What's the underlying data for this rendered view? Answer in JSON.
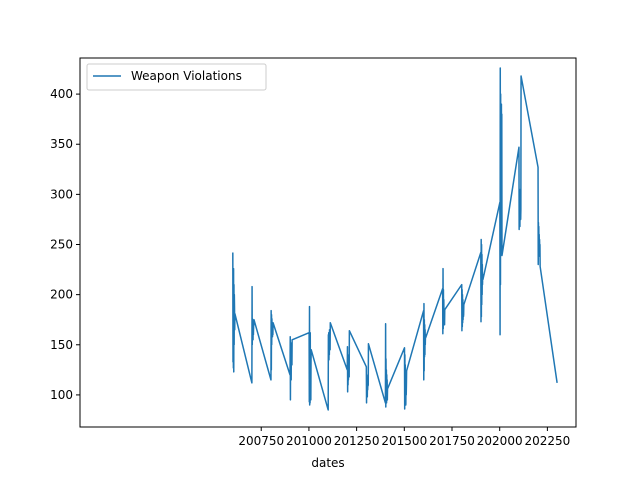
{
  "chart_data": {
    "type": "line",
    "title": "",
    "xlabel": "dates",
    "ylabel": "",
    "xlim": [
      199800,
      202400
    ],
    "ylim": [
      68,
      436
    ],
    "xticks": [
      200750,
      201000,
      201250,
      201500,
      201750,
      202000,
      202250
    ],
    "yticks": [
      100,
      150,
      200,
      250,
      300,
      350,
      400
    ],
    "grid": false,
    "legend_position": "top-left",
    "colors": {
      "series": "#1f77b4"
    },
    "series": [
      {
        "name": "Weapon Violations",
        "x": [
          200601,
          200602,
          200603,
          200604,
          200605,
          200606,
          200607,
          200608,
          200609,
          200610,
          200611,
          200612,
          200701,
          200702,
          200703,
          200704,
          200705,
          200706,
          200707,
          200708,
          200709,
          200710,
          200711,
          200712,
          200801,
          200802,
          200803,
          200804,
          200805,
          200806,
          200807,
          200808,
          200809,
          200810,
          200811,
          200812,
          200901,
          200902,
          200903,
          200904,
          200905,
          200906,
          200907,
          200908,
          200909,
          200910,
          200911,
          200912,
          201001,
          201002,
          201003,
          201004,
          201005,
          201006,
          201007,
          201008,
          201009,
          201010,
          201011,
          201012,
          201101,
          201102,
          201103,
          201104,
          201105,
          201106,
          201107,
          201108,
          201109,
          201110,
          201111,
          201112,
          201201,
          201202,
          201203,
          201204,
          201205,
          201206,
          201207,
          201208,
          201209,
          201210,
          201211,
          201212,
          201301,
          201302,
          201303,
          201304,
          201305,
          201306,
          201307,
          201308,
          201309,
          201310,
          201311,
          201312,
          201401,
          201402,
          201403,
          201404,
          201405,
          201406,
          201407,
          201408,
          201409,
          201410,
          201411,
          201412,
          201501,
          201502,
          201503,
          201504,
          201505,
          201506,
          201507,
          201508,
          201509,
          201510,
          201511,
          201512,
          201601,
          201602,
          201603,
          201604,
          201605,
          201606,
          201607,
          201608,
          201609,
          201610,
          201611,
          201612,
          201701,
          201702,
          201703,
          201704,
          201705,
          201706,
          201707,
          201708,
          201709,
          201710,
          201711,
          201712,
          201801,
          201802,
          201803,
          201804,
          201805,
          201806,
          201807,
          201808,
          201809,
          201810,
          201811,
          201812,
          201901,
          201902,
          201903,
          201904,
          201905,
          201906,
          201907,
          201908,
          201909,
          201910,
          201911,
          201912,
          202001,
          202002,
          202003,
          202004,
          202005,
          202006,
          202007,
          202008,
          202009,
          202010,
          202011,
          202012,
          202101,
          202102,
          202103,
          202104,
          202105,
          202106,
          202107,
          202108,
          202109,
          202110,
          202111,
          202112,
          202201,
          202202,
          202203,
          202204,
          202205,
          202206,
          202207,
          202208,
          202209,
          202210,
          202211,
          202212,
          202301
        ],
        "y": [
          242,
          133,
          218,
          127,
          226,
          123,
          210,
          150,
          200,
          187,
          165,
          181,
          112,
          208,
          150,
          176,
          162,
          170,
          155,
          172,
          160,
          168,
          170,
          175,
          115,
          184,
          125,
          180,
          150,
          176,
          160,
          170,
          158,
          165,
          160,
          172,
          120,
          158,
          95,
          152,
          125,
          148,
          115,
          150,
          130,
          145,
          130,
          155,
          162,
          93,
          188,
          90,
          150,
          92,
          162,
          98,
          140,
          95,
          135,
          145,
          85,
          160,
          145,
          162,
          135,
          156,
          140,
          165,
          150,
          160,
          145,
          172,
          125,
          148,
          103,
          140,
          110,
          132,
          115,
          128,
          120,
          125,
          118,
          164,
          128,
          92,
          120,
          101,
          117,
          98,
          115,
          105,
          112,
          109,
          110,
          151,
          92,
          171,
          88,
          136,
          98,
          125,
          92,
          120,
          105,
          115,
          95,
          106,
          147,
          86,
          140,
          91,
          130,
          95,
          120,
          90,
          115,
          100,
          110,
          124,
          184,
          115,
          191,
          124,
          175,
          138,
          170,
          140,
          165,
          150,
          160,
          157,
          206,
          161,
          226,
          166,
          205,
          170,
          195,
          175,
          185,
          180,
          170,
          185,
          210,
          164,
          205,
          168,
          200,
          172,
          195,
          175,
          185,
          178,
          180,
          190,
          242,
          173,
          255,
          178,
          250,
          190,
          240,
          200,
          230,
          210,
          220,
          215,
          292,
          160,
          426,
          210,
          400,
          280,
          366,
          300,
          390,
          330,
          380,
          239,
          347,
          265,
          300,
          270,
          305,
          268,
          295,
          280,
          290,
          275,
          285,
          418,
          327,
          230,
          272,
          238,
          268,
          240,
          260,
          245,
          255,
          242,
          250,
          228,
          112
        ]
      }
    ]
  }
}
